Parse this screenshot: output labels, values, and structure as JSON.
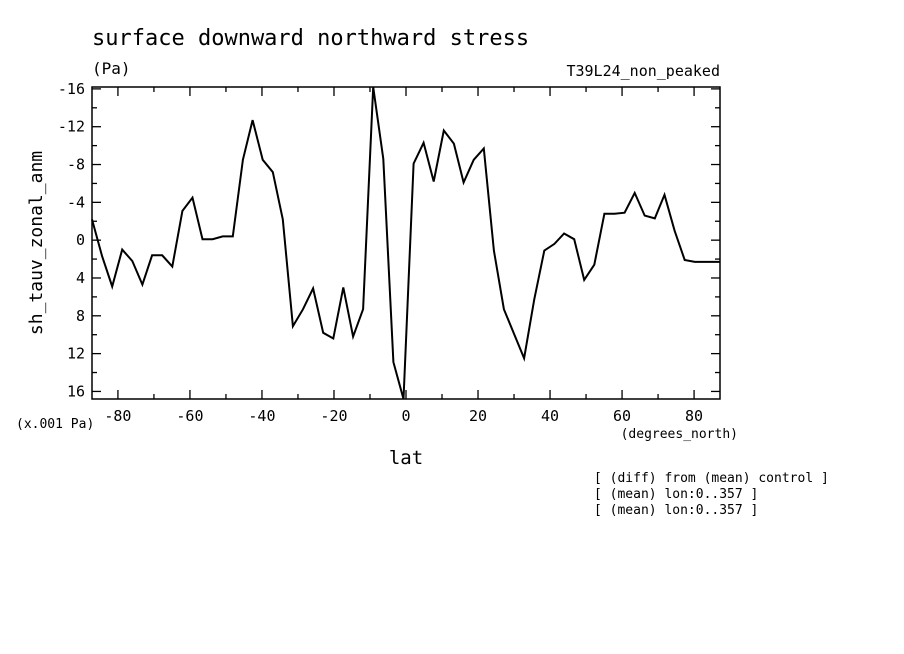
{
  "chart_data": {
    "type": "line",
    "title": "surface downward northward stress",
    "units_label": "(Pa)",
    "run_label": "T39L24_non_peaked",
    "ylabel": "sh_tauv_zonal_anm",
    "xlabel": "lat",
    "x_units": "(degrees_north)",
    "y_scale_label": "(x.001 Pa)",
    "xlim": [
      -87.2,
      87.2
    ],
    "ylim": [
      -16.2,
      16.8
    ],
    "y_inverted": true,
    "grid": false,
    "x_ticks": [
      -80,
      -60,
      -40,
      -20,
      0,
      20,
      40,
      60,
      80
    ],
    "x_tick_labels": [
      "-80",
      "-60",
      "-40",
      "-20",
      "0",
      "20",
      "40",
      "60",
      "80"
    ],
    "y_ticks": [
      -16,
      -12,
      -8,
      -4,
      0,
      4,
      8,
      12,
      16
    ],
    "y_tick_labels": [
      "-16",
      "-12",
      "-8",
      "-4",
      "0",
      "4",
      "8",
      "12",
      "16"
    ],
    "x": [
      -87.2,
      -84.4,
      -81.6,
      -78.8,
      -76.0,
      -73.2,
      -70.5,
      -67.7,
      -64.9,
      -62.1,
      -59.3,
      -56.5,
      -53.7,
      -50.9,
      -48.1,
      -45.3,
      -42.6,
      -39.8,
      -37.0,
      -34.2,
      -31.4,
      -28.6,
      -25.8,
      -23.0,
      -20.2,
      -17.4,
      -14.7,
      -11.9,
      -9.1,
      -6.3,
      -3.5,
      -0.7,
      2.1,
      4.9,
      7.7,
      10.5,
      13.3,
      16.0,
      18.8,
      21.6,
      24.4,
      27.2,
      30.0,
      32.8,
      35.6,
      38.4,
      41.2,
      43.9,
      46.7,
      49.5,
      52.3,
      55.1,
      57.9,
      60.7,
      63.5,
      66.3,
      69.1,
      71.8,
      74.6,
      77.4,
      80.2,
      83.0,
      85.8,
      87.2
    ],
    "y": [
      -2.2,
      1.7,
      4.9,
      1.0,
      2.2,
      4.7,
      1.6,
      1.6,
      2.8,
      -3.1,
      -4.5,
      -0.1,
      -0.1,
      -0.4,
      -0.4,
      -8.5,
      -12.7,
      -8.5,
      -7.2,
      -2.2,
      9.1,
      7.3,
      5.1,
      9.8,
      10.4,
      5.0,
      10.2,
      7.3,
      -16.2,
      -8.6,
      12.9,
      16.8,
      -8.1,
      -10.3,
      -6.2,
      -11.6,
      -10.2,
      -6.1,
      -8.5,
      -9.7,
      1.1,
      7.3,
      9.9,
      12.5,
      6.3,
      1.1,
      0.4,
      -0.7,
      -0.1,
      4.2,
      2.6,
      -2.8,
      -2.8,
      -2.9,
      -5.0,
      -2.6,
      -2.3,
      -4.8,
      -1.0,
      2.1,
      2.3,
      2.3,
      2.3,
      2.3
    ]
  },
  "annotations": [
    "[ (diff) from (mean) control ]",
    "[ (mean) lon:0..357 ]",
    "[ (mean) lon:0..357 ]"
  ]
}
